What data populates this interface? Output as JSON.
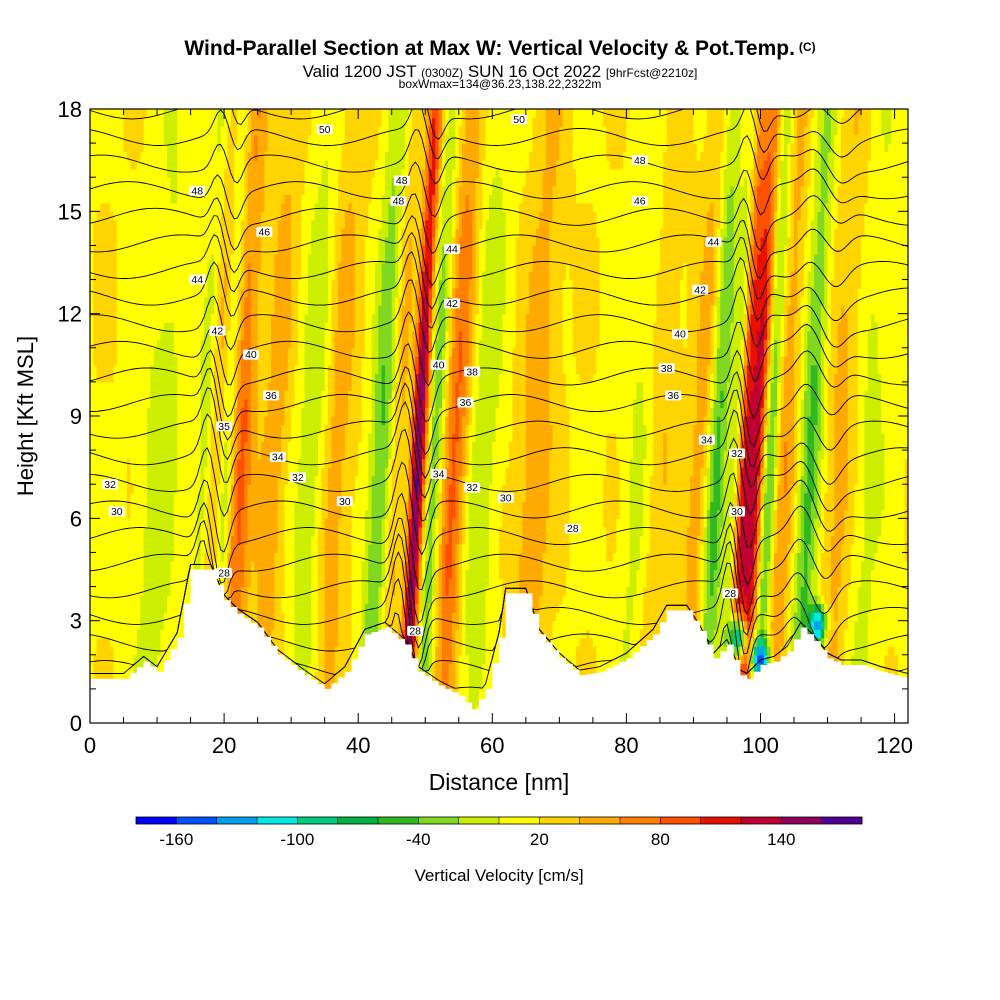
{
  "title": {
    "main": "Wind-Parallel Section at Max W: Vertical Velocity & Pot.Temp.",
    "copyright": "(C)",
    "valid_prefix": "Valid 1200 JST",
    "valid_utc": "(0300Z)",
    "valid_date": "SUN 16 Oct 2022",
    "forecast": "[9hrFcst@2210z]",
    "box": "boxWmax=134@36.23,138.22,2322m"
  },
  "chart_data": {
    "type": "heatmap",
    "xlabel": "Distance [nm]",
    "ylabel": "Height [Kft MSL]",
    "xlim": [
      0,
      122
    ],
    "ylim": [
      0,
      18
    ],
    "xticks": [
      0,
      20,
      40,
      60,
      80,
      100,
      120
    ],
    "yticks": [
      0,
      3,
      6,
      9,
      12,
      15,
      18
    ],
    "grid": false,
    "colorbar": {
      "label": "Vertical Velocity [cm/s]",
      "placement": "bottom",
      "tick_labels": [
        "-160",
        "-100",
        "-40",
        "20",
        "80",
        "140"
      ],
      "tick_values": [
        -160,
        -100,
        -40,
        20,
        80,
        140
      ],
      "range": [
        -180,
        180
      ],
      "colors": [
        "#0000ff",
        "#0050ff",
        "#00a0f0",
        "#00e8e8",
        "#00cc80",
        "#00b040",
        "#30b820",
        "#80d820",
        "#ccee00",
        "#ffff00",
        "#ffd400",
        "#ffaa00",
        "#ff8000",
        "#ff5000",
        "#e81000",
        "#c00030",
        "#900060",
        "#500090"
      ]
    },
    "terrain_kft": [
      [
        0,
        1.3
      ],
      [
        5,
        1.3
      ],
      [
        8,
        1.8
      ],
      [
        10,
        1.5
      ],
      [
        13,
        2.5
      ],
      [
        15,
        4.5
      ],
      [
        18,
        4.5
      ],
      [
        20,
        3.6
      ],
      [
        22,
        3.2
      ],
      [
        25,
        2.8
      ],
      [
        28,
        2.0
      ],
      [
        32,
        1.4
      ],
      [
        35,
        1.0
      ],
      [
        38,
        1.5
      ],
      [
        41,
        2.6
      ],
      [
        44,
        2.8
      ],
      [
        47,
        2.3
      ],
      [
        49,
        1.5
      ],
      [
        52,
        1.1
      ],
      [
        55,
        0.8
      ],
      [
        57,
        0.4
      ],
      [
        59,
        1.0
      ],
      [
        61,
        2.5
      ],
      [
        62,
        3.8
      ],
      [
        65,
        3.8
      ],
      [
        67,
        2.6
      ],
      [
        70,
        1.9
      ],
      [
        73,
        1.4
      ],
      [
        76,
        1.5
      ],
      [
        80,
        1.9
      ],
      [
        84,
        2.6
      ],
      [
        86,
        3.3
      ],
      [
        89,
        3.3
      ],
      [
        91,
        2.7
      ],
      [
        93,
        1.9
      ],
      [
        95,
        2.3
      ],
      [
        97,
        1.4
      ],
      [
        98,
        1.3
      ],
      [
        100,
        1.7
      ],
      [
        102,
        1.8
      ],
      [
        104,
        2.1
      ],
      [
        106,
        2.8
      ],
      [
        108,
        2.4
      ],
      [
        110,
        1.9
      ],
      [
        112,
        1.7
      ],
      [
        115,
        1.7
      ],
      [
        118,
        1.5
      ],
      [
        122,
        1.3
      ]
    ],
    "updrafts": [
      {
        "x": 18,
        "intensity": 55,
        "width": 1.6
      },
      {
        "x": 22,
        "intensity": 70,
        "width": 1.8
      },
      {
        "x": 27,
        "intensity": 35,
        "width": 2.0
      },
      {
        "x": 36,
        "intensity": 40,
        "width": 2.5
      },
      {
        "x": 46,
        "intensity": 45,
        "width": 1.8
      },
      {
        "x": 48.5,
        "intensity": 150,
        "width": 1.2
      },
      {
        "x": 54,
        "intensity": 70,
        "width": 2.0
      },
      {
        "x": 66,
        "intensity": 40,
        "width": 2.5
      },
      {
        "x": 84,
        "intensity": 35,
        "width": 2.5
      },
      {
        "x": 91,
        "intensity": 40,
        "width": 2.0
      },
      {
        "x": 97,
        "intensity": 90,
        "width": 1.2
      },
      {
        "x": 99,
        "intensity": 110,
        "width": 1.4
      },
      {
        "x": 103,
        "intensity": 45,
        "width": 2.0
      },
      {
        "x": 112,
        "intensity": 40,
        "width": 3.0
      }
    ],
    "downdrafts": [
      {
        "x": 10,
        "intensity": -30,
        "width": 3.0
      },
      {
        "x": 17,
        "intensity": -55,
        "width": 1.5
      },
      {
        "x": 20,
        "intensity": -45,
        "width": 1.3
      },
      {
        "x": 33,
        "intensity": -40,
        "width": 2.5
      },
      {
        "x": 43,
        "intensity": -65,
        "width": 1.8
      },
      {
        "x": 47,
        "intensity": -40,
        "width": 1.2
      },
      {
        "x": 51,
        "intensity": -60,
        "width": 1.4
      },
      {
        "x": 58,
        "intensity": -35,
        "width": 2.5
      },
      {
        "x": 82,
        "intensity": -35,
        "width": 2.5
      },
      {
        "x": 93,
        "intensity": -75,
        "width": 1.6
      },
      {
        "x": 96,
        "intensity": -55,
        "width": 1.0
      },
      {
        "x": 101,
        "intensity": -80,
        "width": 1.2
      },
      {
        "x": 107,
        "intensity": -70,
        "width": 1.8
      },
      {
        "x": 115,
        "intensity": -35,
        "width": 3.0
      }
    ],
    "strong_downdrafts_low": [
      {
        "x": 100,
        "y": 1.9,
        "value": -160
      },
      {
        "x": 108.5,
        "y": 2.9,
        "value": -150
      },
      {
        "x": 96.5,
        "y": 2.5,
        "value": -110
      }
    ],
    "theta_contours": {
      "levels": [
        28,
        29,
        30,
        31,
        32,
        33,
        34,
        35,
        36,
        37,
        38,
        39,
        40,
        41,
        42,
        43,
        44,
        45,
        46,
        47,
        48,
        49,
        50
      ],
      "waves": [
        {
          "x": 18.5,
          "amp": 1.4,
          "width": 1.3
        },
        {
          "x": 48,
          "amp": 1.8,
          "width": 1.4
        },
        {
          "x": 97,
          "amp": 1.5,
          "width": 1.2
        },
        {
          "x": 108,
          "amp": 0.8,
          "width": 2.0
        }
      ]
    },
    "theta_labels": [
      {
        "text": "50",
        "x": 35,
        "y": 17.4
      },
      {
        "text": "50",
        "x": 64,
        "y": 17.7
      },
      {
        "text": "48",
        "x": 16,
        "y": 15.6
      },
      {
        "text": "48",
        "x": 46,
        "y": 15.3
      },
      {
        "text": "48",
        "x": 82,
        "y": 16.5
      },
      {
        "text": "48",
        "x": 46.5,
        "y": 15.9
      },
      {
        "text": "46",
        "x": 26,
        "y": 14.4
      },
      {
        "text": "46",
        "x": 82,
        "y": 15.3
      },
      {
        "text": "44",
        "x": 16,
        "y": 13.0
      },
      {
        "text": "44",
        "x": 54,
        "y": 13.9
      },
      {
        "text": "44",
        "x": 93,
        "y": 14.1
      },
      {
        "text": "42",
        "x": 19,
        "y": 11.5
      },
      {
        "text": "42",
        "x": 54,
        "y": 12.3
      },
      {
        "text": "42",
        "x": 91,
        "y": 12.7
      },
      {
        "text": "40",
        "x": 24,
        "y": 10.8
      },
      {
        "text": "40",
        "x": 52,
        "y": 10.5
      },
      {
        "text": "40",
        "x": 88,
        "y": 11.4
      },
      {
        "text": "38",
        "x": 57,
        "y": 10.3
      },
      {
        "text": "38",
        "x": 86,
        "y": 10.4
      },
      {
        "text": "36",
        "x": 27,
        "y": 9.6
      },
      {
        "text": "36",
        "x": 56,
        "y": 9.4
      },
      {
        "text": "36",
        "x": 87,
        "y": 9.6
      },
      {
        "text": "35",
        "x": 20,
        "y": 8.7
      },
      {
        "text": "34",
        "x": 28,
        "y": 7.8
      },
      {
        "text": "34",
        "x": 52,
        "y": 7.3
      },
      {
        "text": "34",
        "x": 92,
        "y": 8.3
      },
      {
        "text": "32",
        "x": 3,
        "y": 7.0
      },
      {
        "text": "32",
        "x": 31,
        "y": 7.2
      },
      {
        "text": "32",
        "x": 57,
        "y": 6.9
      },
      {
        "text": "32",
        "x": 96.5,
        "y": 7.9
      },
      {
        "text": "30",
        "x": 4,
        "y": 6.2
      },
      {
        "text": "30",
        "x": 38,
        "y": 6.5
      },
      {
        "text": "30",
        "x": 62,
        "y": 6.6
      },
      {
        "text": "30",
        "x": 96.5,
        "y": 6.2
      },
      {
        "text": "28",
        "x": 72,
        "y": 5.7
      },
      {
        "text": "28",
        "x": 20,
        "y": 4.4
      },
      {
        "text": "28",
        "x": 48.5,
        "y": 2.7
      },
      {
        "text": "28",
        "x": 95.5,
        "y": 3.8
      }
    ]
  }
}
